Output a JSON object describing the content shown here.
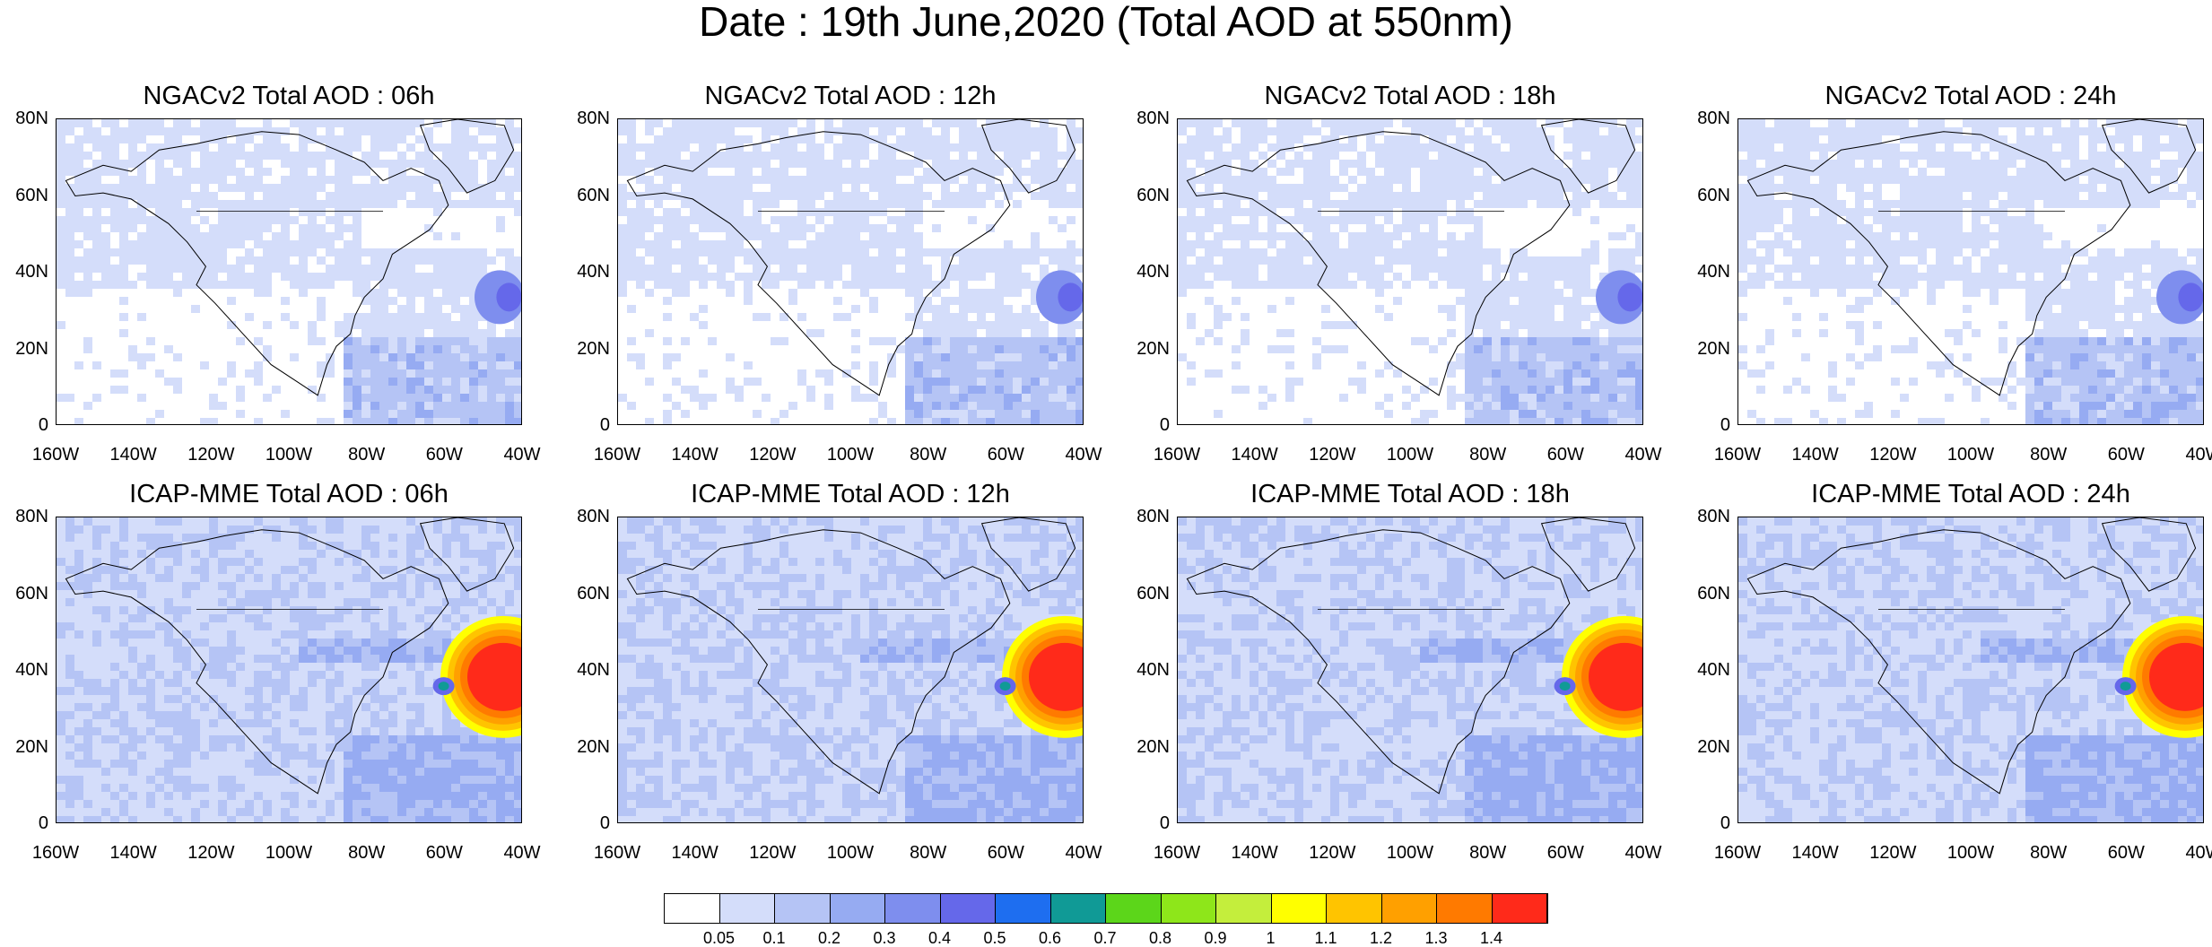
{
  "title": "Date : 19th June,2020 (Total AOD at 550nm)",
  "y_ticks": [
    "80N",
    "60N",
    "40N",
    "20N",
    "0"
  ],
  "x_ticks": [
    "160W",
    "140W",
    "120W",
    "100W",
    "80W",
    "60W",
    "40W"
  ],
  "panels": [
    {
      "title": "NGACv2 Total AOD : 06h",
      "model": "NGACv2",
      "hour": "06h",
      "plume": false
    },
    {
      "title": "NGACv2 Total AOD : 12h",
      "model": "NGACv2",
      "hour": "12h",
      "plume": false
    },
    {
      "title": "NGACv2 Total AOD : 18h",
      "model": "NGACv2",
      "hour": "18h",
      "plume": false
    },
    {
      "title": "NGACv2 Total AOD : 24h",
      "model": "NGACv2",
      "hour": "24h",
      "plume": false
    },
    {
      "title": "ICAP-MME Total AOD : 06h",
      "model": "ICAP-MME",
      "hour": "06h",
      "plume": true
    },
    {
      "title": "ICAP-MME Total AOD : 12h",
      "model": "ICAP-MME",
      "hour": "12h",
      "plume": true
    },
    {
      "title": "ICAP-MME Total AOD : 18h",
      "model": "ICAP-MME",
      "hour": "18h",
      "plume": true
    },
    {
      "title": "ICAP-MME Total AOD : 24h",
      "model": "ICAP-MME",
      "hour": "24h",
      "plume": true
    }
  ],
  "colorbar": {
    "labels": [
      "0.05",
      "0.1",
      "0.2",
      "0.3",
      "0.4",
      "0.5",
      "0.6",
      "0.7",
      "0.8",
      "0.9",
      "1",
      "1.1",
      "1.2",
      "1.3",
      "1.4"
    ],
    "colors": [
      "#ffffff",
      "#d4ddfa",
      "#b5c4f5",
      "#96abf2",
      "#7e8eee",
      "#6568ea",
      "#1e6ef0",
      "#109a96",
      "#5cd61a",
      "#8ee61a",
      "#c4ee3c",
      "#ffff00",
      "#ffc400",
      "#ffa000",
      "#ff7a00",
      "#ff2a1a"
    ]
  }
}
